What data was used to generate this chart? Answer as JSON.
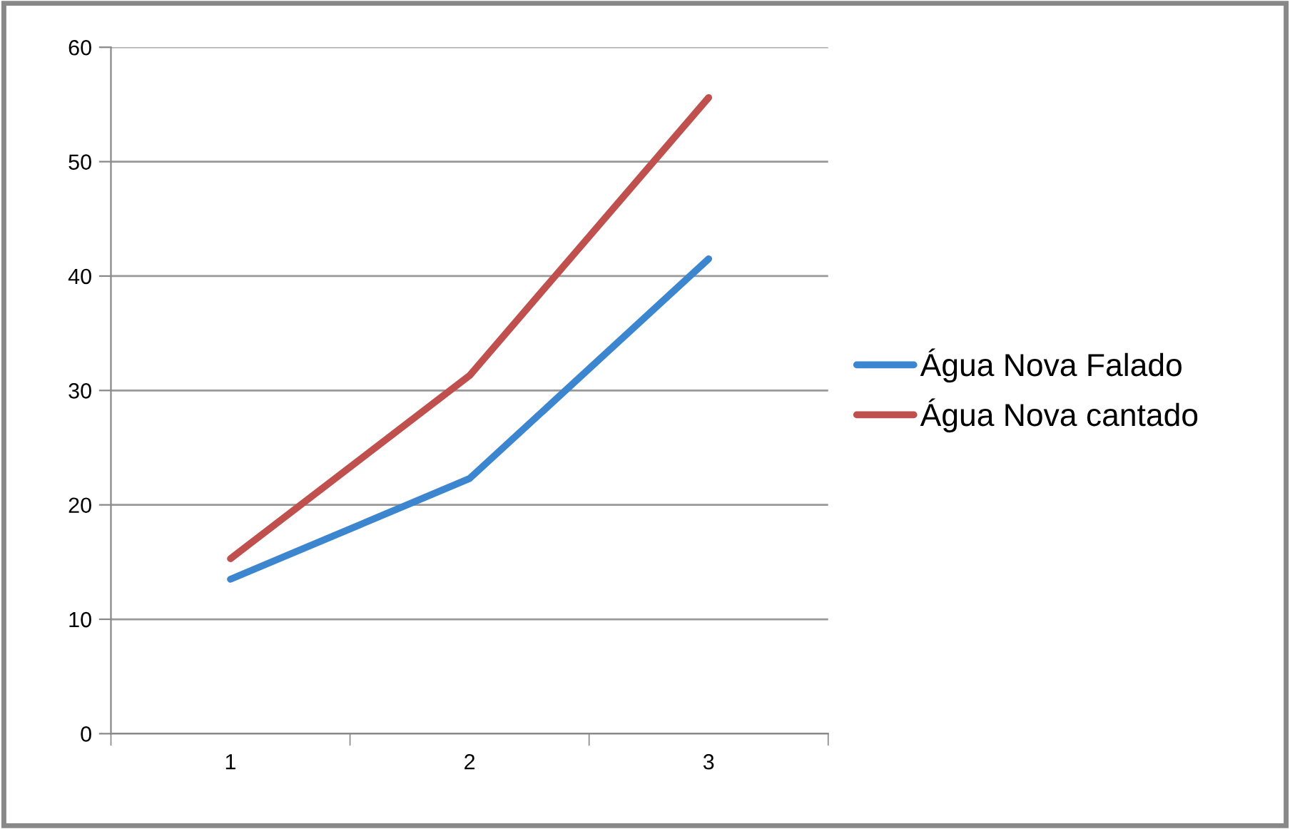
{
  "chart_data": {
    "type": "line",
    "categories": [
      "1",
      "2",
      "3"
    ],
    "series": [
      {
        "name": "Água Nova Falado",
        "color": "#3c86cf",
        "values": [
          13.5,
          22.3,
          41.5
        ]
      },
      {
        "name": "Água Nova cantado",
        "color": "#c0504d",
        "values": [
          15.3,
          31.3,
          55.6
        ]
      }
    ],
    "ylim": [
      0,
      60
    ],
    "yticks": [
      0,
      10,
      20,
      30,
      40,
      50,
      60
    ],
    "grid": "y",
    "legend": "right",
    "marker": "none",
    "line_style": "solid"
  }
}
